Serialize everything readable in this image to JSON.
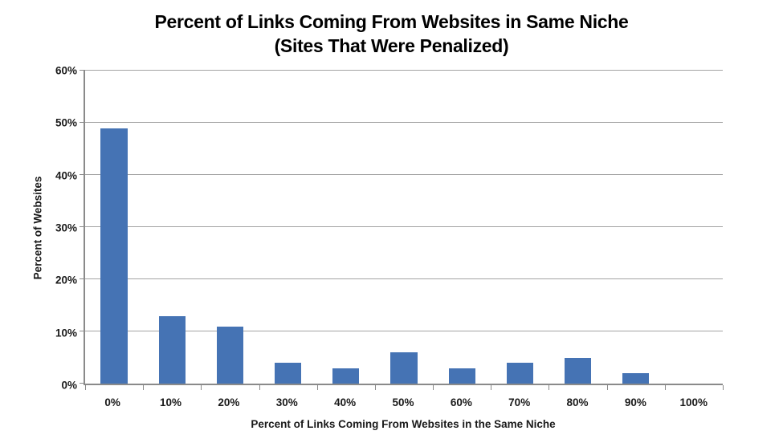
{
  "title": {
    "line1": "Percent of Links Coming From Websites in Same Niche",
    "line2": "(Sites That Were Penalized)"
  },
  "chart_data": {
    "type": "bar",
    "title": "Percent of Links Coming From Websites in Same Niche (Sites That Were Penalized)",
    "categories": [
      "0%",
      "10%",
      "20%",
      "30%",
      "40%",
      "50%",
      "60%",
      "70%",
      "80%",
      "90%",
      "100%"
    ],
    "values": [
      49,
      13,
      11,
      4,
      3,
      6,
      3,
      4,
      5,
      2,
      0
    ],
    "xlabel": "Percent of Links Coming From Websites in the Same Niche",
    "ylabel": "Percent of Websites",
    "ylim": [
      0,
      60
    ],
    "ytick_values": [
      0,
      10,
      20,
      30,
      40,
      50,
      60
    ],
    "ytick_labels": [
      "0%",
      "10%",
      "20%",
      "30%",
      "40%",
      "50%",
      "60%"
    ],
    "grid": true,
    "legend": false,
    "colors": {
      "bar": "#4573b4",
      "gridline": "#a3a3a3",
      "axis": "#8a8a8a",
      "text": "#1a1a1a",
      "title": "#000000",
      "background": "#ffffff"
    }
  }
}
